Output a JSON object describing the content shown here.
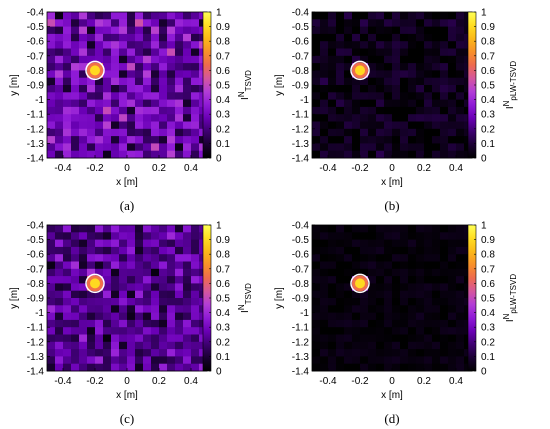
{
  "chart_data": [
    {
      "type": "heatmap",
      "caption": "(a)",
      "xlabel": "x [m]",
      "ylabel": "y [m]",
      "cb_label": "I",
      "cb_sup": "N",
      "cb_sub": "TSVD",
      "xlim": [
        -0.5,
        0.5
      ],
      "ylim": [
        -1.4,
        -0.4
      ],
      "xticks": [
        -0.4,
        -0.2,
        0,
        0.2,
        0.4
      ],
      "yticks": [
        -0.4,
        -0.5,
        -0.6,
        -0.7,
        -0.8,
        -0.9,
        -1,
        -1.1,
        -1.2,
        -1.3,
        -1.4
      ],
      "clim": [
        0,
        1
      ],
      "cticks": [
        0,
        0.1,
        0.2,
        0.3,
        0.4,
        0.5,
        0.6,
        0.7,
        0.8,
        0.9,
        1
      ],
      "target": {
        "x": -0.2,
        "y": -0.8,
        "peak": 1
      },
      "background_level": 0.28,
      "clutter": 0.12
    },
    {
      "type": "heatmap",
      "caption": "(b)",
      "xlabel": "x [m]",
      "ylabel": "y [m]",
      "cb_label": "I",
      "cb_sup": "N",
      "cb_sub": "pLW-TSVD",
      "xlim": [
        -0.5,
        0.5
      ],
      "ylim": [
        -1.4,
        -0.4
      ],
      "xticks": [
        -0.4,
        -0.2,
        0,
        0.2,
        0.4
      ],
      "yticks": [
        -0.4,
        -0.5,
        -0.6,
        -0.7,
        -0.8,
        -0.9,
        -1,
        -1.1,
        -1.2,
        -1.3,
        -1.4
      ],
      "clim": [
        0,
        1
      ],
      "cticks": [
        0,
        0.1,
        0.2,
        0.3,
        0.4,
        0.5,
        0.6,
        0.7,
        0.8,
        0.9,
        1
      ],
      "target": {
        "x": -0.2,
        "y": -0.8,
        "peak": 1
      },
      "background_level": 0.04,
      "clutter": 0.08
    },
    {
      "type": "heatmap",
      "caption": "(c)",
      "xlabel": "x [m]",
      "ylabel": "y [m]",
      "cb_label": "I",
      "cb_sup": "N",
      "cb_sub": "TSVD",
      "xlim": [
        -0.5,
        0.5
      ],
      "ylim": [
        -1.4,
        -0.4
      ],
      "xticks": [
        -0.4,
        -0.2,
        0,
        0.2,
        0.4
      ],
      "yticks": [
        -0.4,
        -0.5,
        -0.6,
        -0.7,
        -0.8,
        -0.9,
        -1,
        -1.1,
        -1.2,
        -1.3,
        -1.4
      ],
      "clim": [
        0,
        1
      ],
      "cticks": [
        0,
        0.1,
        0.2,
        0.3,
        0.4,
        0.5,
        0.6,
        0.7,
        0.8,
        0.9,
        1
      ],
      "target": {
        "x": -0.2,
        "y": -0.8,
        "peak": 1
      },
      "background_level": 0.22,
      "clutter": 0.1
    },
    {
      "type": "heatmap",
      "caption": "(d)",
      "xlabel": "x [m]",
      "ylabel": "y [m]",
      "cb_label": "I",
      "cb_sup": "N",
      "cb_sub": "pLW-TSVD",
      "xlim": [
        -0.5,
        0.5
      ],
      "ylim": [
        -1.4,
        -0.4
      ],
      "xticks": [
        -0.4,
        -0.2,
        0,
        0.2,
        0.4
      ],
      "yticks": [
        -0.4,
        -0.5,
        -0.6,
        -0.7,
        -0.8,
        -0.9,
        -1,
        -1.1,
        -1.2,
        -1.3,
        -1.4
      ],
      "clim": [
        0,
        1
      ],
      "cticks": [
        0,
        0.1,
        0.2,
        0.3,
        0.4,
        0.5,
        0.6,
        0.7,
        0.8,
        0.9,
        1
      ],
      "target": {
        "x": -0.2,
        "y": -0.8,
        "peak": 1
      },
      "background_level": 0.02,
      "clutter": 0.03
    }
  ],
  "colormap": [
    "#000000",
    "#1a0033",
    "#3d0070",
    "#6a00b5",
    "#8f1ad6",
    "#b23dd6",
    "#d4569e",
    "#ee6a4f",
    "#f8902a",
    "#fbb818",
    "#ffdd22",
    "#ffff55"
  ]
}
